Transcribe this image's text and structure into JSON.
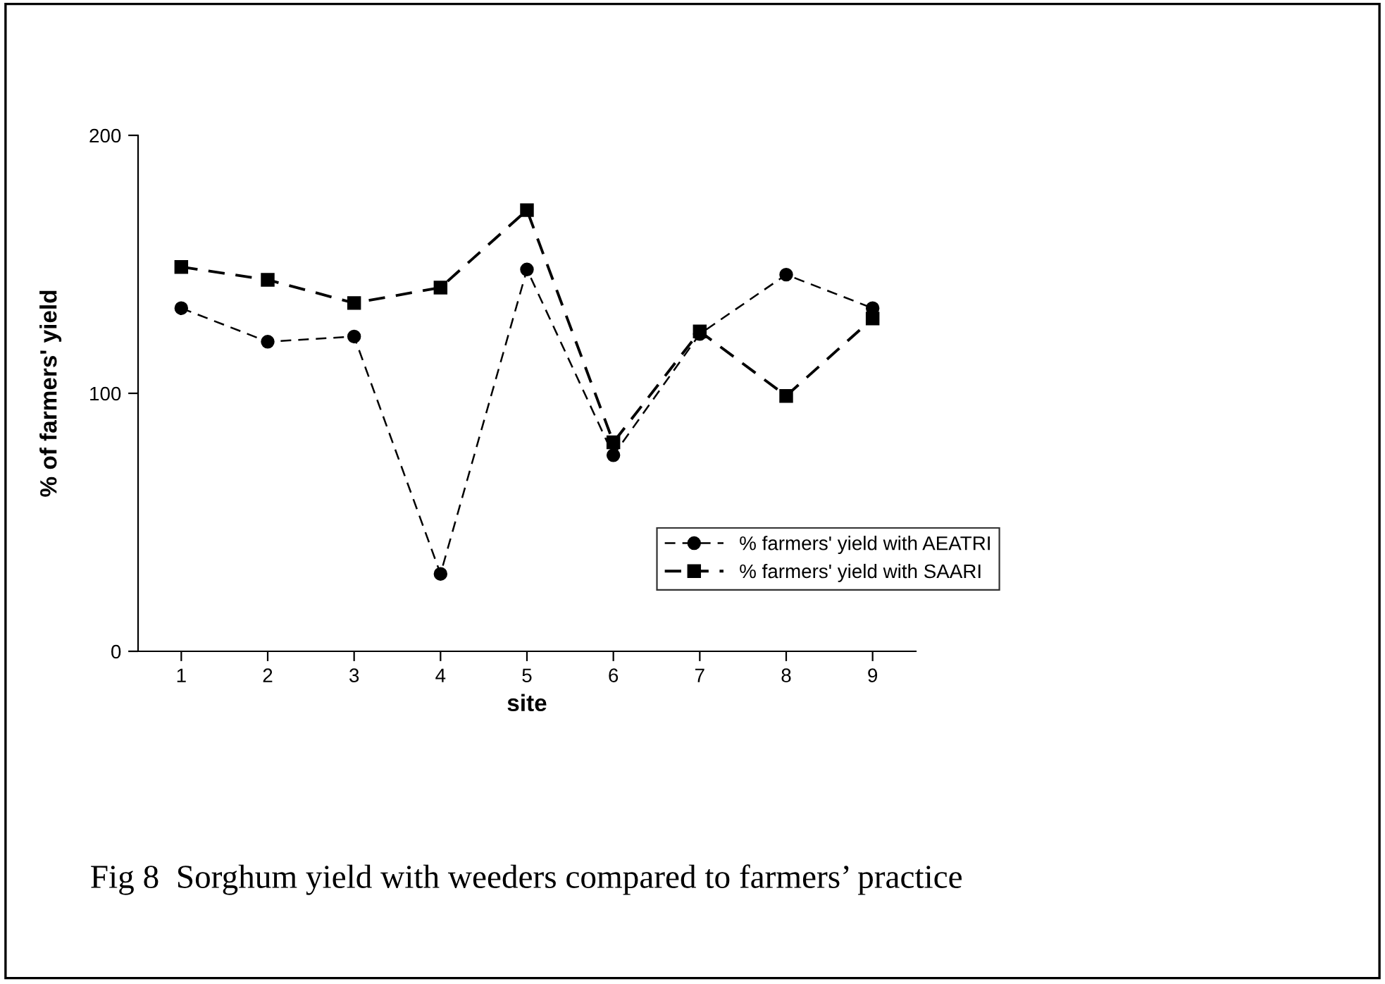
{
  "chart_data": {
    "type": "line",
    "xlabel": "site",
    "ylabel": "% of farmers' yield",
    "categories": [
      "1",
      "2",
      "3",
      "4",
      "5",
      "6",
      "7",
      "8",
      "9"
    ],
    "series": [
      {
        "name": "% farmers' yield with AEATRI",
        "color": "#000000",
        "marker": "circle",
        "values": [
          133,
          120,
          122,
          30,
          148,
          76,
          123,
          146,
          133
        ]
      },
      {
        "name": "% farmers' yield with SAARI",
        "color": "#000000",
        "marker": "square",
        "values": [
          149,
          144,
          135,
          141,
          171,
          81,
          124,
          99,
          129
        ]
      }
    ],
    "ylim": [
      0,
      200
    ],
    "yticks": [
      0,
      100,
      200
    ],
    "line_style": "dashed",
    "grid": false,
    "legend": "bottom right",
    "annotations": [
      "Fig 8  Sorghum yield with weeders compared to farmers’ practice"
    ]
  }
}
